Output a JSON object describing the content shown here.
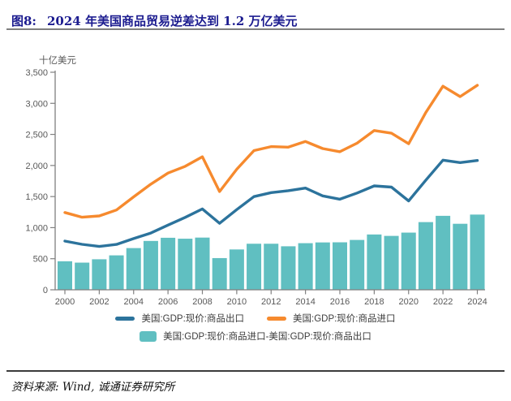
{
  "header": {
    "figure_label": "图8:",
    "title": "2024 年美国商品贸易逆差达到 1.2 万亿美元"
  },
  "footer": {
    "source": "资料来源: Wind, 诚通证券研究所"
  },
  "colors": {
    "export_line": "#2C739C",
    "import_line": "#F68A2E",
    "deficit_bar": "#60BFC1",
    "title_text": "#1B1B8F",
    "axis_line": "#808080",
    "tick_text": "#595959",
    "legend_text": "#3C3C3C",
    "divider_top": "#7F7F7F",
    "divider_bottom": "#3B3B3B"
  },
  "chart_data": {
    "type": "combo",
    "title": "2024 年美国商品贸易逆差达到 1.2 万亿美元",
    "ylabel": "十亿美元",
    "xlabel": "",
    "ylim": [
      0,
      3500
    ],
    "y_tick_interval": 500,
    "x_label_step": 2,
    "grid": false,
    "legend_position": "bottom",
    "x": [
      2000,
      2001,
      2002,
      2003,
      2004,
      2005,
      2006,
      2007,
      2008,
      2009,
      2010,
      2011,
      2012,
      2013,
      2014,
      2015,
      2016,
      2017,
      2018,
      2019,
      2020,
      2021,
      2022,
      2023,
      2024
    ],
    "series": [
      {
        "name": "美国:GDP:现价:商品出口",
        "type": "line",
        "color_key": "export_line",
        "values": [
          784,
          731,
          698,
          730,
          824,
          913,
          1041,
          1165,
          1301,
          1070,
          1290,
          1499,
          1563,
          1594,
          1636,
          1511,
          1457,
          1557,
          1672,
          1652,
          1430,
          1762,
          2086,
          2046,
          2080
        ]
      },
      {
        "name": "美国:GDP:现价:商品进口",
        "type": "line",
        "color_key": "import_line",
        "values": [
          1243,
          1168,
          1189,
          1284,
          1495,
          1699,
          1878,
          1987,
          2141,
          1580,
          1939,
          2240,
          2304,
          2294,
          2386,
          2273,
          2221,
          2359,
          2562,
          2519,
          2350,
          2851,
          3276,
          3108,
          3290
        ]
      },
      {
        "name": "美国:GDP:现价:商品进口-美国:GDP:现价:商品出口",
        "type": "bar",
        "color_key": "deficit_bar",
        "values": [
          459,
          437,
          491,
          554,
          671,
          786,
          837,
          822,
          840,
          510,
          649,
          741,
          741,
          700,
          750,
          762,
          764,
          802,
          890,
          867,
          920,
          1089,
          1190,
          1062,
          1210
        ]
      }
    ]
  }
}
